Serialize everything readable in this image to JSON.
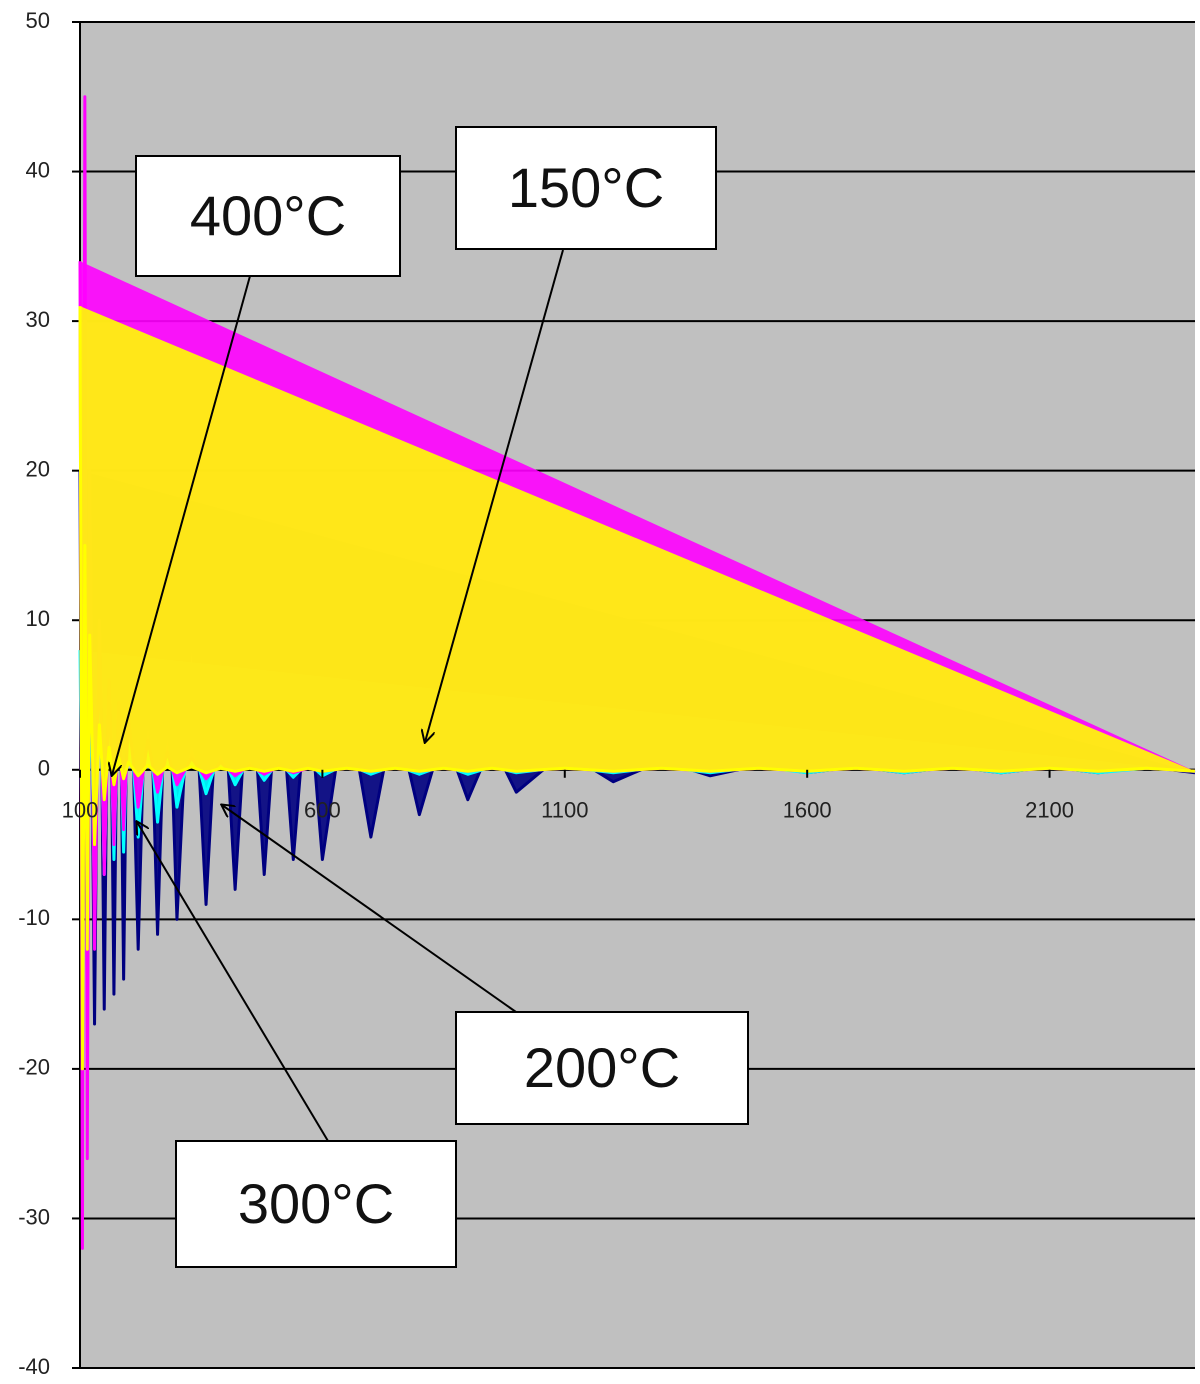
{
  "chart_data": {
    "type": "line",
    "x": [
      100,
      105,
      110,
      115,
      120,
      130,
      140,
      150,
      160,
      170,
      180,
      190,
      200,
      220,
      240,
      260,
      280,
      300,
      330,
      360,
      390,
      420,
      450,
      480,
      510,
      540,
      570,
      600,
      650,
      700,
      750,
      800,
      850,
      900,
      950,
      1000,
      1100,
      1200,
      1300,
      1400,
      1500,
      1600,
      1700,
      1800,
      1900,
      2000,
      2100,
      2200,
      2300,
      2400
    ],
    "series": [
      {
        "name": "150°C",
        "color": "#000080",
        "values": [
          20,
          -19,
          19,
          -18,
          18,
          -17,
          17,
          -16,
          16,
          -15,
          15,
          -14,
          13,
          -12,
          12,
          -11,
          10,
          -10,
          10,
          -9,
          9,
          -8,
          8,
          -7,
          7,
          -6,
          6,
          -6,
          5,
          -4.5,
          4,
          -3,
          2.5,
          -2,
          1.8,
          -1.5,
          1.2,
          -0.8,
          0.6,
          -0.4,
          0.3,
          -0.2,
          0.2,
          -0.2,
          0.2,
          -0.2,
          0.2,
          -0.2,
          0.2,
          -0.2
        ]
      },
      {
        "name": "200°C",
        "color": "#00ffff",
        "values": [
          8,
          -8,
          9,
          -10,
          10,
          -9,
          8,
          -7,
          7,
          -6,
          6,
          -5.5,
          5,
          -4.5,
          4,
          -3.5,
          3,
          -2.5,
          2,
          -1.6,
          1.3,
          -1,
          0.8,
          -0.7,
          0.6,
          -0.5,
          0.5,
          -0.4,
          0.4,
          -0.3,
          0.3,
          -0.3,
          0.3,
          -0.3,
          0.2,
          -0.2,
          0.2,
          -0.2,
          0.2,
          -0.2,
          0.2,
          -0.2,
          0.2,
          -0.2,
          0.2,
          -0.2,
          0.2,
          -0.2,
          0.1,
          -0.1
        ]
      },
      {
        "name": "300°C",
        "color": "#ff00ff",
        "values": [
          34,
          -32,
          45,
          -26,
          20,
          -12,
          10,
          -7,
          6,
          -5,
          4.5,
          -4,
          3.5,
          -2.5,
          2,
          -1.5,
          1.2,
          -1,
          0.8,
          -0.6,
          0.5,
          -0.4,
          0.3,
          -0.3,
          0.2,
          -0.2,
          0.1,
          -0.1,
          0.1,
          -0.1,
          0.1,
          -0.1,
          0.1,
          -0.1,
          0.1,
          -0.1,
          0.1,
          -0.1,
          0.1,
          -0.1,
          0.1,
          -0.1,
          0.1,
          -0.1,
          0.1,
          -0.1,
          0.1,
          -0.1,
          0.1,
          -0.1
        ]
      },
      {
        "name": "400°C",
        "color": "#ffff00",
        "values": [
          31,
          -20,
          15,
          -12,
          9,
          -5,
          3,
          -2,
          1.5,
          -1,
          0.8,
          -0.6,
          0.5,
          -0.4,
          0.3,
          -0.3,
          0.2,
          -0.2,
          0.2,
          -0.2,
          0.1,
          -0.1,
          0.1,
          -0.1,
          0.1,
          -0.1,
          0.1,
          -0.1,
          0.1,
          -0.1,
          0.1,
          -0.1,
          0.1,
          -0.1,
          0.1,
          -0.1,
          0.1,
          -0.1,
          0.1,
          -0.1,
          0.1,
          -0.1,
          0.1,
          -0.1,
          0.1,
          -0.1,
          0.1,
          -0.1,
          0.1,
          -0.1
        ]
      }
    ],
    "xlim": [
      100,
      2400
    ],
    "xticks": [
      100,
      600,
      1100,
      1600,
      2100
    ],
    "ylim": [
      -40,
      50
    ],
    "yticks": [
      50,
      40,
      30,
      20,
      10,
      0,
      -10,
      -20,
      -30,
      -40
    ],
    "grid": true,
    "background": "#c0c0c0"
  }
}
